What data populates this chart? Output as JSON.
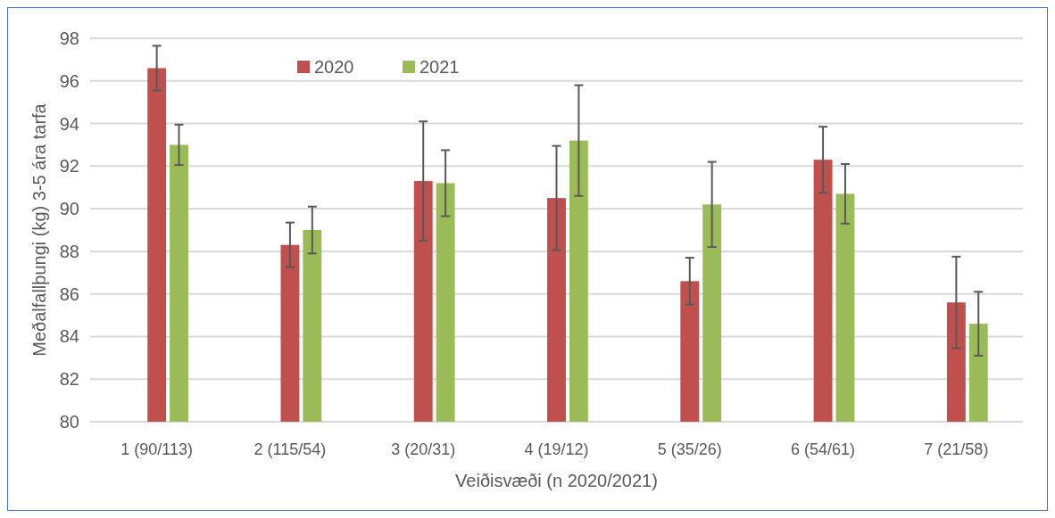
{
  "chart_data": {
    "type": "bar",
    "xlabel": "Veiðisvæði (n 2020/2021)",
    "ylabel": "Meðalfallþungi (kg) 3-5 ára tarfa",
    "categories": [
      "1 (90/113)",
      "2 (115/54)",
      "3 (20/31)",
      "4 (19/12)",
      "5 (35/26)",
      "6 (54/61)",
      "7 (21/58)"
    ],
    "series": [
      {
        "name": "2020",
        "color": "#c0504d",
        "values": [
          96.6,
          88.3,
          91.3,
          90.5,
          86.6,
          92.3,
          85.6
        ],
        "errors": [
          [
            95.55,
            97.65
          ],
          [
            87.25,
            89.35
          ],
          [
            88.5,
            94.1
          ],
          [
            88.05,
            92.95
          ],
          [
            85.5,
            87.7
          ],
          [
            90.75,
            93.85
          ],
          [
            83.45,
            87.75
          ]
        ]
      },
      {
        "name": "2021",
        "color": "#9bbb59",
        "values": [
          93.0,
          89.0,
          91.2,
          93.2,
          90.2,
          90.7,
          84.6
        ],
        "errors": [
          [
            92.05,
            93.95
          ],
          [
            87.9,
            90.1
          ],
          [
            89.65,
            92.75
          ],
          [
            90.6,
            95.8
          ],
          [
            88.2,
            92.2
          ],
          [
            89.3,
            92.1
          ],
          [
            83.1,
            86.1
          ]
        ]
      }
    ],
    "ylim": [
      80,
      98
    ],
    "yticks": [
      80,
      82,
      84,
      86,
      88,
      90,
      92,
      94,
      96,
      98
    ],
    "grid": "y",
    "legend": "top"
  }
}
